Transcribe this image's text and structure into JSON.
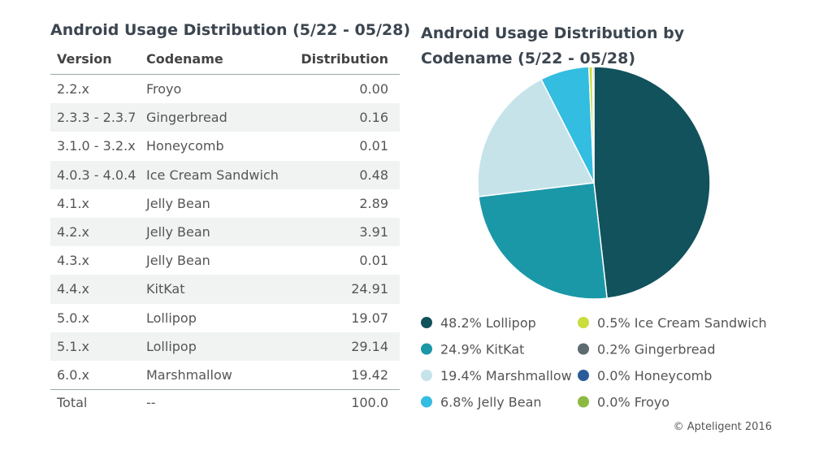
{
  "table": {
    "title": "Android Usage Distribution (5/22 - 05/28)",
    "header": [
      "Version",
      "Codename",
      "Distribution"
    ],
    "rows": [
      [
        "2.2.x",
        "Froyo",
        "0.00"
      ],
      [
        "2.3.3 - 2.3.7",
        "Gingerbread",
        "0.16"
      ],
      [
        "3.1.0 - 3.2.x",
        "Honeycomb",
        "0.01"
      ],
      [
        "4.0.3 - 4.0.4",
        "Ice Cream Sandwich",
        "0.48"
      ],
      [
        "4.1.x",
        "Jelly Bean",
        "2.89"
      ],
      [
        "4.2.x",
        "Jelly Bean",
        "3.91"
      ],
      [
        "4.3.x",
        "Jelly Bean",
        "0.01"
      ],
      [
        "4.4.x",
        "KitKat",
        "24.91"
      ],
      [
        "5.0.x",
        "Lollipop",
        "19.07"
      ],
      [
        "5.1.x",
        "Lollipop",
        "29.14"
      ],
      [
        "6.0.x",
        "Marshmallow",
        "19.42"
      ]
    ],
    "total": [
      "Total",
      "--",
      "100.0"
    ]
  },
  "chart_data": {
    "type": "pie",
    "title": "Android Usage Distribution by Codename (5/22 - 05/28)",
    "categories": [
      "Lollipop",
      "KitKat",
      "Marshmallow",
      "Jelly Bean",
      "Ice Cream Sandwich",
      "Gingerbread",
      "Honeycomb",
      "Froyo"
    ],
    "values": [
      48.2,
      24.9,
      19.4,
      6.8,
      0.5,
      0.2,
      0.0,
      0.0
    ],
    "value_labels": [
      "48.2%",
      "24.9%",
      "19.4%",
      "6.8%",
      "0.5%",
      "0.2%",
      "0.0%",
      "0.0%"
    ],
    "colors": [
      "#11525c",
      "#1b98a8",
      "#c6e3ea",
      "#33bde0",
      "#c9dd3c",
      "#5b6b70",
      "#2b5c9a",
      "#8cb941"
    ]
  },
  "copyright": "© Apteligent 2016"
}
